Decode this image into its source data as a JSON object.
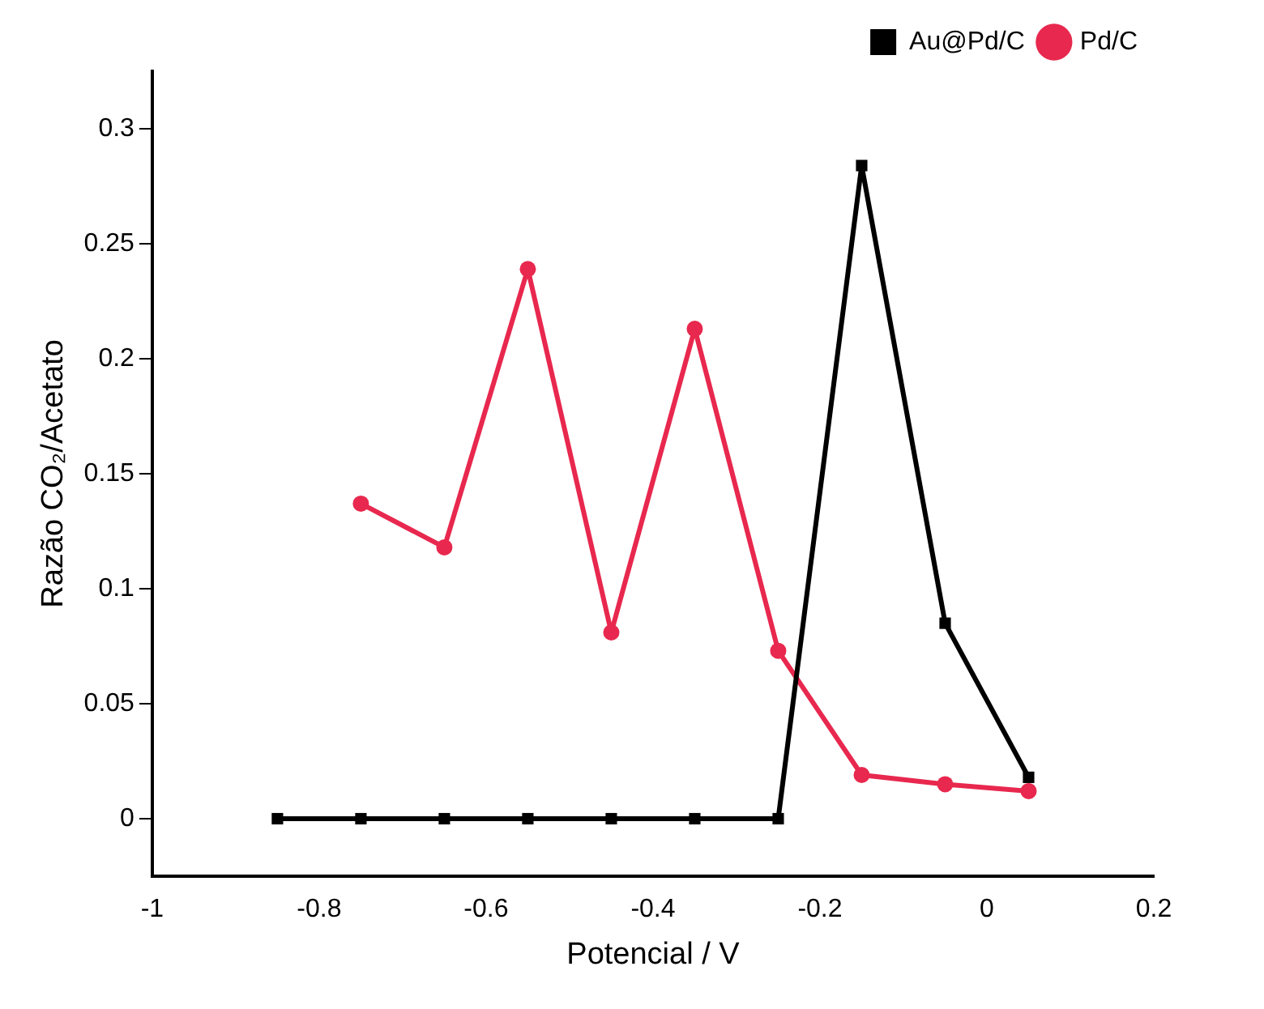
{
  "chart_data": {
    "type": "line",
    "xlabel": "Potencial / V",
    "ylabel": "Razão CO₂/Acetato",
    "xlim": [
      -1,
      0.2
    ],
    "xticks": [
      -1,
      -0.8,
      -0.6,
      -0.4,
      -0.2,
      0,
      0.2
    ],
    "ylim": [
      -0.025,
      0.325
    ],
    "yticks": [
      0,
      0.05,
      0.1,
      0.15,
      0.2,
      0.25,
      0.3
    ],
    "grid": false,
    "legend": "top right",
    "series": [
      {
        "name": "Au@Pd/C",
        "color": "#000000",
        "marker": "square",
        "x": [
          -0.85,
          -0.75,
          -0.65,
          -0.55,
          -0.45,
          -0.35,
          -0.25,
          -0.15,
          -0.05,
          0.05
        ],
        "values": [
          0,
          0,
          0,
          0,
          0,
          0,
          0,
          0.284,
          0.085,
          0.018
        ]
      },
      {
        "name": "Pd/C",
        "color": "#e8284e",
        "marker": "circle",
        "x": [
          -0.75,
          -0.65,
          -0.55,
          -0.45,
          -0.35,
          -0.25,
          -0.15,
          -0.05,
          0.05
        ],
        "values": [
          0.137,
          0.118,
          0.239,
          0.081,
          0.213,
          0.073,
          0.019,
          0.015,
          0.012
        ]
      }
    ]
  }
}
